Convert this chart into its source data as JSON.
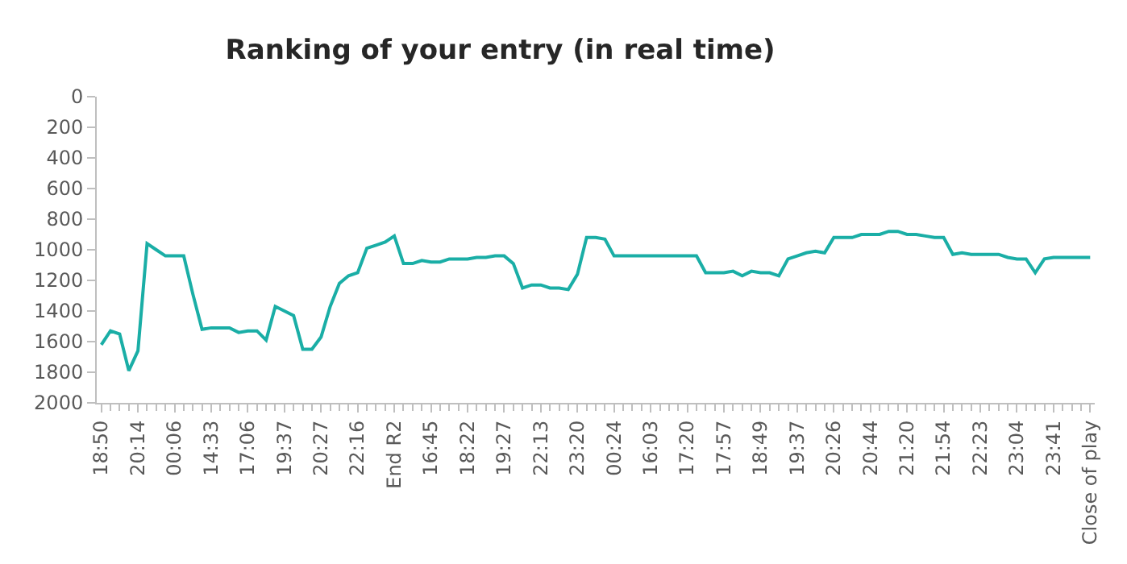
{
  "chart_data": {
    "type": "line",
    "title": "Ranking of your entry (in real time)",
    "categories": [
      "18:50",
      null,
      null,
      null,
      "20:14",
      null,
      null,
      null,
      "00:06",
      null,
      null,
      null,
      "14:33",
      null,
      null,
      null,
      "17:06",
      null,
      null,
      null,
      "19:37",
      null,
      null,
      null,
      "20:27",
      null,
      null,
      null,
      "22:16",
      null,
      null,
      null,
      "End R2",
      null,
      null,
      null,
      "16:45",
      null,
      null,
      null,
      "18:22",
      null,
      null,
      null,
      "19:27",
      null,
      null,
      null,
      "22:13",
      null,
      null,
      null,
      "23:20",
      null,
      null,
      null,
      "00:24",
      null,
      null,
      null,
      "16:03",
      null,
      null,
      null,
      "17:20",
      null,
      null,
      null,
      "17:57",
      null,
      null,
      null,
      "18:49",
      null,
      null,
      null,
      "19:37",
      null,
      null,
      null,
      "20:26",
      null,
      null,
      null,
      "20:44",
      null,
      null,
      null,
      "21:20",
      null,
      null,
      null,
      "21:54",
      null,
      null,
      null,
      "22:23",
      null,
      null,
      null,
      "23:04",
      null,
      null,
      null,
      "23:41",
      null,
      null,
      null,
      "Close of play"
    ],
    "series": [
      {
        "color": "#1aaea6",
        "values": [
          1620,
          1530,
          1550,
          1790,
          1660,
          960,
          1000,
          1040,
          1040,
          1040,
          1290,
          1520,
          1510,
          1510,
          1510,
          1540,
          1530,
          1530,
          1590,
          1370,
          1400,
          1430,
          1650,
          1650,
          1570,
          1370,
          1220,
          1170,
          1150,
          990,
          970,
          950,
          910,
          1090,
          1090,
          1070,
          1080,
          1080,
          1060,
          1060,
          1060,
          1050,
          1050,
          1040,
          1040,
          1090,
          1250,
          1230,
          1230,
          1250,
          1250,
          1260,
          1160,
          920,
          920,
          930,
          1040,
          1040,
          1040,
          1040,
          1040,
          1040,
          1040,
          1040,
          1040,
          1040,
          1150,
          1150,
          1150,
          1140,
          1170,
          1140,
          1150,
          1150,
          1170,
          1060,
          1040,
          1020,
          1010,
          1020,
          920,
          920,
          920,
          900,
          900,
          900,
          880,
          880,
          900,
          900,
          910,
          920,
          920,
          1030,
          1020,
          1030,
          1030,
          1030,
          1030,
          1050,
          1060,
          1060,
          1150,
          1060,
          1050,
          1050,
          1050,
          1050,
          1050
        ]
      }
    ],
    "ylim": [
      2000,
      0
    ],
    "yticks": [
      0,
      200,
      400,
      600,
      800,
      1000,
      1200,
      1400,
      1600,
      1800,
      2000
    ],
    "marker": "none",
    "line_style": "solid"
  }
}
